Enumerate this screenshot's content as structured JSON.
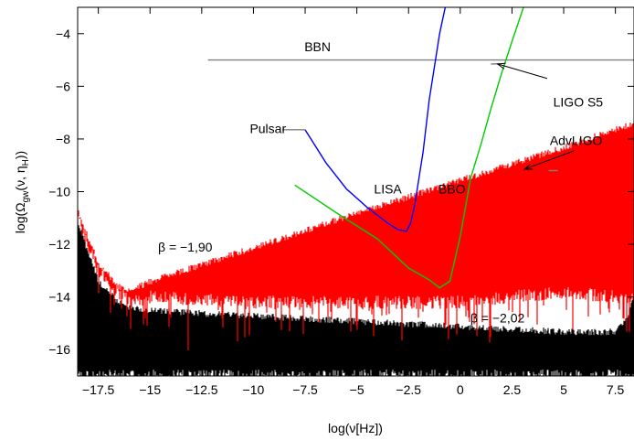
{
  "chart_data": {
    "type": "line",
    "xlabel": "log(ν[Hz])",
    "ylabel": "log(Ω",
    "ylabel_sub1": "gw",
    "ylabel_mid": "(ν, η",
    "ylabel_sub2": "H",
    "ylabel_end": "))",
    "xlim": [
      -18.5,
      8.4
    ],
    "ylim": [
      -17,
      -3
    ],
    "x_ticks": [
      -17.5,
      -15,
      -12.5,
      -10,
      -7.5,
      -5,
      -2.5,
      0,
      2.5,
      5,
      7.5
    ],
    "x_tick_labels": [
      "−17.5",
      "−15",
      "−12.5",
      "−10",
      "−7.5",
      "−5",
      "−2.5",
      "0",
      "2.5",
      "5",
      "7.5"
    ],
    "y_ticks": [
      -16,
      -14,
      -12,
      -10,
      -8,
      -6,
      -4
    ],
    "y_tick_labels": [
      "−16",
      "−14",
      "−12",
      "−10",
      "−8",
      "−6",
      "−4"
    ],
    "grid": false,
    "series": [
      {
        "color": "#ff0000",
        "style": "noisy-band",
        "x": [
          -18.5,
          -17.5,
          -16.5,
          -16.0,
          -15.0,
          -10.0,
          -5.0,
          0.0,
          5.0,
          7.5,
          8.0,
          8.4
        ],
        "y_upper": [
          -10.6,
          -12.6,
          -13.5,
          -13.65,
          -13.3,
          -12.0,
          -10.7,
          -9.45,
          -8.2,
          -7.5,
          -7.4,
          -7.3
        ],
        "y_lower": [
          -11.0,
          -13.0,
          -13.8,
          -14.2,
          -14.0,
          -14.2,
          -14.2,
          -14.2,
          -13.8,
          -14.0,
          -14.0,
          -14.0
        ]
      },
      {
        "color": "#000000",
        "style": "noisy-band",
        "x": [
          -18.5,
          -17.5,
          -16.5,
          -16.0,
          -15.0,
          -10.0,
          -5.0,
          0.0,
          5.0,
          7.5,
          8.0,
          8.4
        ],
        "y_upper": [
          -11.0,
          -13.3,
          -14.1,
          -14.3,
          -14.4,
          -14.6,
          -14.8,
          -15.0,
          -15.2,
          -15.2,
          -14.8,
          -13.8
        ],
        "y_lower": [
          -17.0,
          -17.0,
          -17.0,
          -17.0,
          -17.0,
          -17.0,
          -17.0,
          -17.0,
          -17.0,
          -17.0,
          -17.0,
          -17.0
        ]
      },
      {
        "name": "LISA",
        "color": "#0000ff",
        "x": [
          -7.5,
          -6.5,
          -5.5,
          -4.5,
          -3.5,
          -3.0,
          -2.6,
          -2.4,
          -2.2,
          -1.8,
          -1.5,
          -1.2,
          -1.0,
          -0.7
        ],
        "y": [
          -7.65,
          -8.9,
          -9.9,
          -10.6,
          -11.2,
          -11.45,
          -11.5,
          -11.2,
          -10.5,
          -8.5,
          -6.5,
          -5.0,
          -4.0,
          -2.9
        ]
      },
      {
        "name": "BBO",
        "color": "#00cc00",
        "x": [
          -8.0,
          -6.0,
          -4.0,
          -2.5,
          -1.5,
          -1.0,
          -0.5,
          0.0,
          0.5,
          1.0,
          1.5,
          2.0,
          2.5,
          3.1
        ],
        "y": [
          -9.75,
          -10.8,
          -11.8,
          -12.9,
          -13.35,
          -13.65,
          -13.4,
          -11.7,
          -9.5,
          -8.2,
          -6.8,
          -5.5,
          -4.3,
          -2.9
        ]
      }
    ],
    "reference_lines": [
      {
        "label": "BBN",
        "x": [
          -12.2,
          8.4
        ],
        "y": -5.0,
        "color": "#808080"
      },
      {
        "label": "Pulsar",
        "x": [
          -8.6,
          -7.5
        ],
        "y": -7.65,
        "color": "#808080"
      }
    ],
    "points": [
      {
        "label": "LIGO S5",
        "x": 1.7,
        "y": -5.15,
        "color": "#808080"
      },
      {
        "label": "AdvLIGO",
        "x": 4.5,
        "y": -9.2,
        "color": "#808080"
      }
    ],
    "annotations": [
      {
        "text": "BBN",
        "x": -6.9,
        "y": -4.5
      },
      {
        "text": "Pulsar",
        "x": -9.3,
        "y": -7.6
      },
      {
        "text": "LISA",
        "x": -3.5,
        "y": -9.9
      },
      {
        "text": "BBO",
        "x": -0.4,
        "y": -9.9
      },
      {
        "text": "LIGO S5",
        "x": 5.7,
        "y": -6.6
      },
      {
        "text": "AdvLIGO",
        "x": 5.6,
        "y": -8.05
      },
      {
        "text": "β = −1,90",
        "x": -13.3,
        "y": -12.1
      },
      {
        "text": "β = −2,02",
        "x": 1.8,
        "y": -14.8
      }
    ],
    "arrows": [
      {
        "from": [
          4.2,
          -5.7
        ],
        "to": [
          1.8,
          -5.15
        ]
      },
      {
        "from": [
          5.5,
          -8.45
        ],
        "to": [
          3.1,
          -9.15
        ]
      }
    ]
  }
}
